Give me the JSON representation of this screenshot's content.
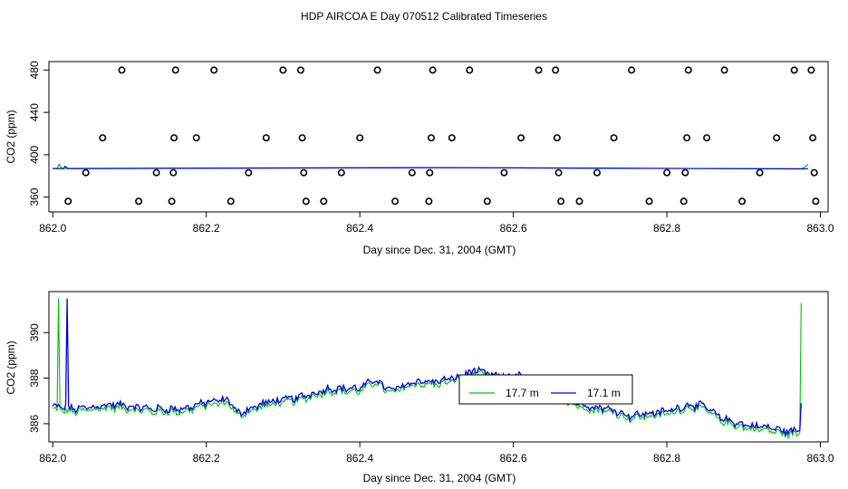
{
  "figure": {
    "title": "HDP AIRCOA E  Day 070512  Calibrated Timeseries"
  },
  "colors": {
    "green": "#00c000",
    "blue": "#0000e0",
    "axis": "#000000"
  },
  "chart_data": [
    {
      "type": "scatter",
      "title": "HDP AIRCOA E  Day 070512  Calibrated Timeseries",
      "xlabel": "Day since Dec. 31, 2004 (GMT)",
      "ylabel": "CO2 (ppm)",
      "xlim": [
        861.995,
        863.01
      ],
      "ylim": [
        346,
        488
      ],
      "x_ticks": [
        "862.0",
        "862.2",
        "862.4",
        "862.6",
        "862.8",
        "863.0"
      ],
      "y_ticks": [
        "360",
        "400",
        "440",
        "480"
      ],
      "grid": false,
      "legend": "none",
      "cal_points": [
        {
          "x": 862.02,
          "y": 356
        },
        {
          "x": 862.043,
          "y": 383
        },
        {
          "x": 862.065,
          "y": 416
        },
        {
          "x": 862.09,
          "y": 480
        },
        {
          "x": 862.112,
          "y": 356
        },
        {
          "x": 862.135,
          "y": 383
        },
        {
          "x": 862.155,
          "y": 356
        },
        {
          "x": 862.157,
          "y": 383
        },
        {
          "x": 862.158,
          "y": 416
        },
        {
          "x": 862.16,
          "y": 480
        },
        {
          "x": 862.187,
          "y": 416
        },
        {
          "x": 862.21,
          "y": 480
        },
        {
          "x": 862.232,
          "y": 356
        },
        {
          "x": 862.255,
          "y": 383
        },
        {
          "x": 862.278,
          "y": 416
        },
        {
          "x": 862.3,
          "y": 480
        },
        {
          "x": 862.323,
          "y": 480
        },
        {
          "x": 862.325,
          "y": 416
        },
        {
          "x": 862.327,
          "y": 383
        },
        {
          "x": 862.33,
          "y": 356
        },
        {
          "x": 862.353,
          "y": 356
        },
        {
          "x": 862.376,
          "y": 383
        },
        {
          "x": 862.4,
          "y": 416
        },
        {
          "x": 862.423,
          "y": 480
        },
        {
          "x": 862.446,
          "y": 356
        },
        {
          "x": 862.468,
          "y": 383
        },
        {
          "x": 862.49,
          "y": 356
        },
        {
          "x": 862.491,
          "y": 383
        },
        {
          "x": 862.493,
          "y": 416
        },
        {
          "x": 862.495,
          "y": 480
        },
        {
          "x": 862.52,
          "y": 416
        },
        {
          "x": 862.543,
          "y": 480
        },
        {
          "x": 862.566,
          "y": 356
        },
        {
          "x": 862.588,
          "y": 383
        },
        {
          "x": 862.61,
          "y": 416
        },
        {
          "x": 862.633,
          "y": 480
        },
        {
          "x": 862.655,
          "y": 480
        },
        {
          "x": 862.657,
          "y": 416
        },
        {
          "x": 862.659,
          "y": 383
        },
        {
          "x": 862.662,
          "y": 356
        },
        {
          "x": 862.686,
          "y": 356
        },
        {
          "x": 862.709,
          "y": 383
        },
        {
          "x": 862.731,
          "y": 416
        },
        {
          "x": 862.754,
          "y": 480
        },
        {
          "x": 862.777,
          "y": 356
        },
        {
          "x": 862.8,
          "y": 383
        },
        {
          "x": 862.822,
          "y": 356
        },
        {
          "x": 862.824,
          "y": 383
        },
        {
          "x": 862.826,
          "y": 416
        },
        {
          "x": 862.828,
          "y": 480
        },
        {
          "x": 862.852,
          "y": 416
        },
        {
          "x": 862.875,
          "y": 480
        },
        {
          "x": 862.898,
          "y": 356
        },
        {
          "x": 862.921,
          "y": 383
        },
        {
          "x": 862.943,
          "y": 416
        },
        {
          "x": 862.966,
          "y": 480
        },
        {
          "x": 862.988,
          "y": 480
        },
        {
          "x": 862.99,
          "y": 416
        },
        {
          "x": 862.992,
          "y": 383
        },
        {
          "x": 862.994,
          "y": 356
        }
      ],
      "series": [
        {
          "color": "#00c000",
          "x": [
            862.0,
            862.006,
            862.008,
            862.012,
            862.016,
            862.5,
            862.975,
            862.98,
            862.984
          ],
          "y": [
            387,
            387,
            391,
            387,
            387,
            387.8,
            386.6,
            388.5,
            391
          ]
        },
        {
          "color": "#0000e0",
          "x": [
            862.0,
            862.014,
            862.016,
            862.02,
            862.5,
            862.98,
            862.984
          ],
          "y": [
            387,
            387,
            389,
            387,
            387.8,
            386.6,
            387
          ]
        }
      ]
    },
    {
      "type": "line",
      "xlabel": "Day since Dec. 31, 2004 (GMT)",
      "ylabel": "CO2 (ppm)",
      "xlim": [
        861.995,
        863.01
      ],
      "ylim": [
        385.2,
        391.8
      ],
      "x_ticks": [
        "862.0",
        "862.2",
        "862.4",
        "862.6",
        "862.8",
        "863.0"
      ],
      "y_ticks": [
        "386",
        "388",
        "390"
      ],
      "grid": false,
      "legend": "center-right",
      "legend_entries": [
        {
          "label": "17.7 m",
          "color": "#00c000"
        },
        {
          "label": "17.1 m",
          "color": "#0000e0"
        }
      ],
      "anchors": {
        "x": [
          862.0,
          862.03,
          862.08,
          862.13,
          862.17,
          862.2,
          862.23,
          862.24,
          862.28,
          862.32,
          862.36,
          862.4,
          862.42,
          862.44,
          862.47,
          862.5,
          862.53,
          862.55,
          862.58,
          862.6,
          862.63,
          862.65,
          862.68,
          862.7,
          862.73,
          862.75,
          862.8,
          862.83,
          862.85,
          862.87,
          862.9,
          862.93,
          862.96,
          862.975
        ],
        "y": [
          386.7,
          386.6,
          386.8,
          386.6,
          386.6,
          386.9,
          387.0,
          386.4,
          386.9,
          387.1,
          387.5,
          387.5,
          387.9,
          387.4,
          387.8,
          387.8,
          388.0,
          388.3,
          388.0,
          388.1,
          387.9,
          387.4,
          386.9,
          386.7,
          386.6,
          386.3,
          386.5,
          386.8,
          386.7,
          386.2,
          385.9,
          385.8,
          385.6,
          385.7
        ]
      },
      "spikes": [
        {
          "series": "17.7 m",
          "x": 862.008,
          "y": 391.5
        },
        {
          "series": "17.1 m",
          "x": 862.018,
          "y": 391.5
        },
        {
          "series": "17.7 m",
          "x": 862.979,
          "y": 388.2
        },
        {
          "series": "17.7 m",
          "x": 862.984,
          "y": 391.3
        },
        {
          "series": "17.1 m",
          "x": 862.983,
          "y": 386.9
        }
      ]
    }
  ]
}
